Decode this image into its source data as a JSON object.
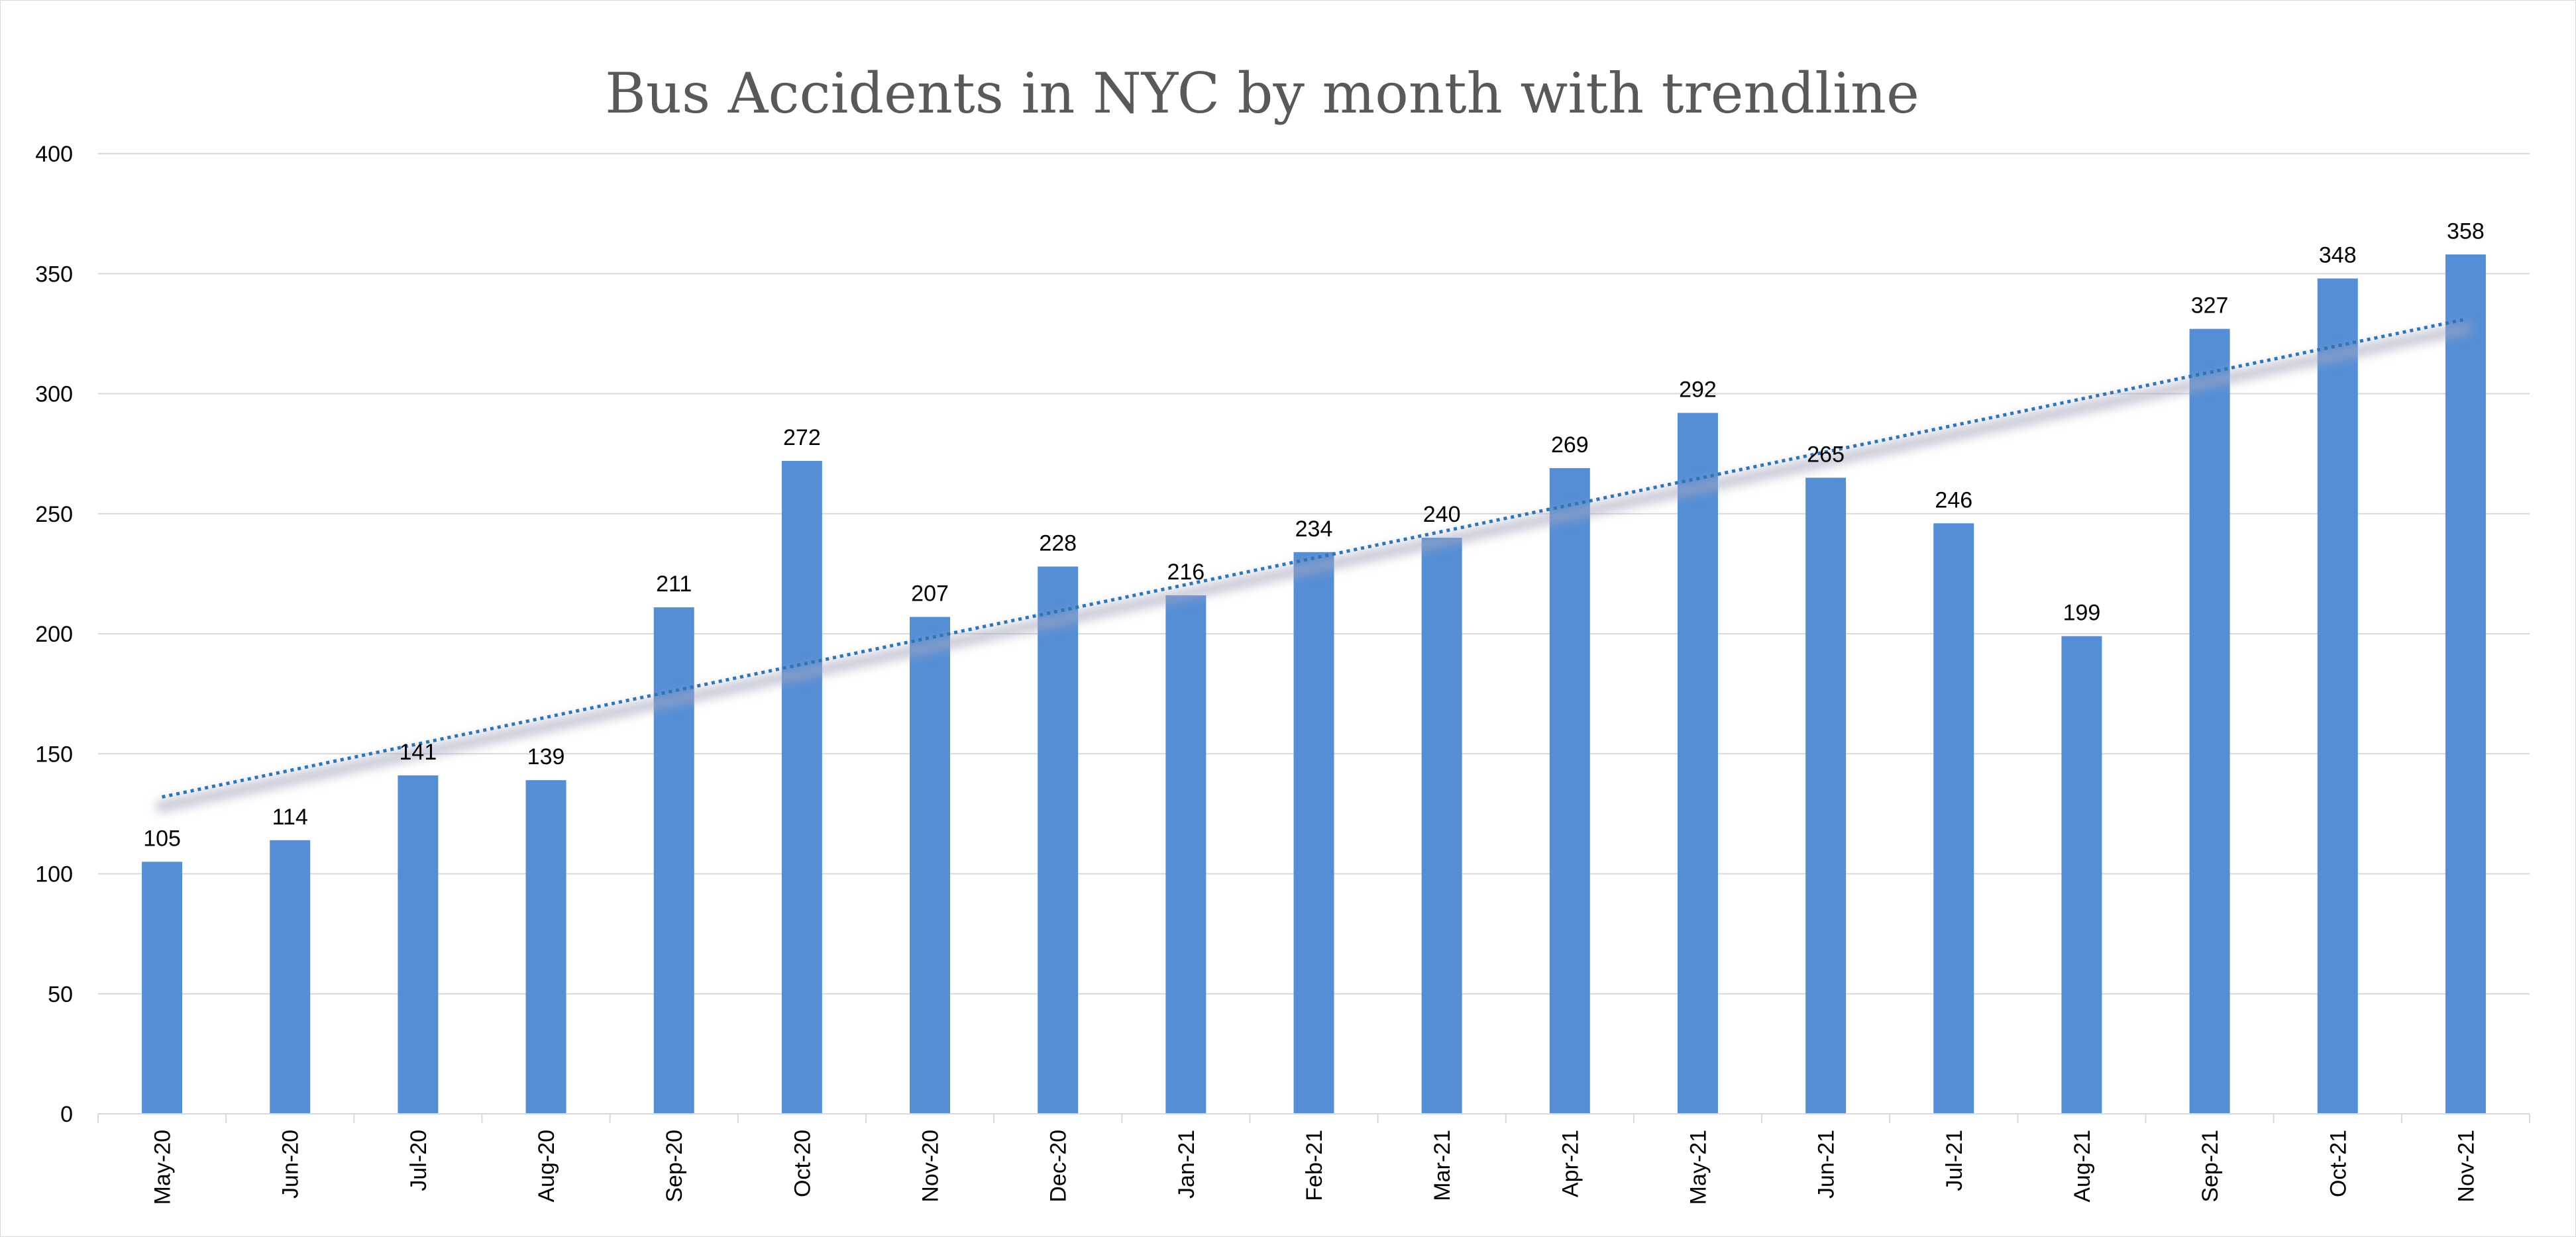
{
  "chart_data": {
    "type": "bar",
    "title": "Bus Accidents in NYC by month with trendline",
    "xlabel": "",
    "ylabel": "",
    "categories": [
      "May-20",
      "Jun-20",
      "Jul-20",
      "Aug-20",
      "Sep-20",
      "Oct-20",
      "Nov-20",
      "Dec-20",
      "Jan-21",
      "Feb-21",
      "Mar-21",
      "Apr-21",
      "May-21",
      "Jun-21",
      "Jul-21",
      "Aug-21",
      "Sep-21",
      "Oct-21",
      "Nov-21"
    ],
    "values": [
      105,
      114,
      141,
      139,
      211,
      272,
      207,
      228,
      216,
      234,
      240,
      269,
      292,
      265,
      246,
      199,
      327,
      348,
      358
    ],
    "ylim": [
      0,
      400
    ],
    "yticks": [
      0,
      50,
      100,
      150,
      200,
      250,
      300,
      350,
      400
    ],
    "grid": true,
    "legend": "none",
    "data_labels": true,
    "trendline": {
      "type": "linear",
      "style": "dotted",
      "start_value": 132,
      "end_value": 331
    },
    "colors": {
      "bar": "#558ed5",
      "trendline": "#2e75b6",
      "trend_shadow": "#a6a6bf",
      "grid": "#d9d9d9",
      "title": "#595959"
    }
  }
}
